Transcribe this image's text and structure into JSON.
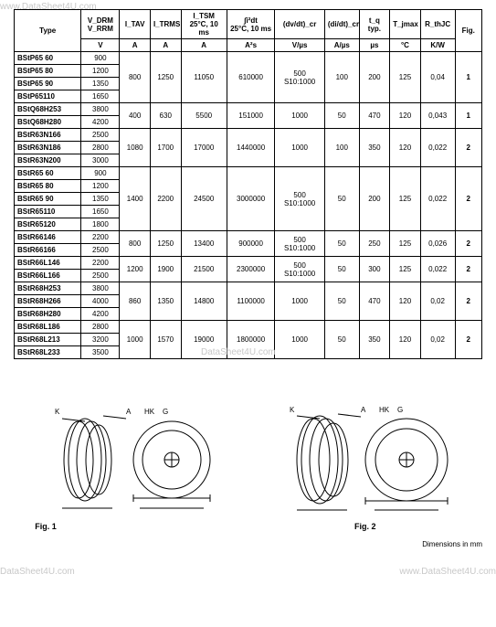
{
  "watermarks": {
    "top": "www.DataSheet4U.com",
    "mid": "DataSheet4U.com",
    "left": "DataSheet4U.com",
    "right": "www.DataSheet4U.com"
  },
  "table": {
    "headers": {
      "type": "Type",
      "vdrm": "V_DRM\nV_RRM",
      "vdrm_unit": "V",
      "itav": "I_TAV",
      "itav_unit": "A",
      "itrms": "I_TRMS",
      "itrms_unit": "A",
      "itsm": "I_TSM\n25°C, 10 ms",
      "itsm_unit": "A",
      "i2t": "∫i²dt\n25°C, 10 ms",
      "i2t_unit": "A²s",
      "dvdt": "(dv/dt)_cr",
      "dvdt_unit": "V/µs",
      "didt": "(di/dt)_cr",
      "didt_unit": "A/µs",
      "tq": "t_q typ.",
      "tq_unit": "µs",
      "tjmax": "T_jmax",
      "tjmax_unit": "°C",
      "rthjc": "R_thJC",
      "rthjc_unit": "K/W",
      "fig": "Fig."
    },
    "groups": [
      {
        "rows": [
          {
            "type": "BStP65 60",
            "v": "900"
          },
          {
            "type": "BStP65 80",
            "v": "1200"
          },
          {
            "type": "BStP65 90",
            "v": "1350"
          },
          {
            "type": "BStP65110",
            "v": "1650"
          }
        ],
        "itav": "800",
        "itrms": "1250",
        "itsm": "11050",
        "i2t": "610000",
        "dvdt": "500\nS10:1000",
        "didt": "100",
        "tq": "200",
        "tjmax": "125",
        "rth": "0,04",
        "fig": "1"
      },
      {
        "rows": [
          {
            "type": "BStQ68H253",
            "v": "3800"
          },
          {
            "type": "BStQ68H280",
            "v": "4200"
          }
        ],
        "itav": "400",
        "itrms": "630",
        "itsm": "5500",
        "i2t": "151000",
        "dvdt": "1000",
        "didt": "50",
        "tq": "470",
        "tjmax": "120",
        "rth": "0,043",
        "fig": "1"
      },
      {
        "rows": [
          {
            "type": "BStR63N166",
            "v": "2500"
          },
          {
            "type": "BStR63N186",
            "v": "2800"
          },
          {
            "type": "BStR63N200",
            "v": "3000"
          }
        ],
        "itav": "1080",
        "itrms": "1700",
        "itsm": "17000",
        "i2t": "1440000",
        "dvdt": "1000",
        "didt": "100",
        "tq": "350",
        "tjmax": "120",
        "rth": "0,022",
        "fig": "2"
      },
      {
        "rows": [
          {
            "type": "BStR65 60",
            "v": "900"
          },
          {
            "type": "BStR65 80",
            "v": "1200"
          },
          {
            "type": "BStR65 90",
            "v": "1350"
          },
          {
            "type": "BStR65110",
            "v": "1650"
          },
          {
            "type": "BStR65120",
            "v": "1800"
          }
        ],
        "itav": "1400",
        "itrms": "2200",
        "itsm": "24500",
        "i2t": "3000000",
        "dvdt": "500\nS10:1000",
        "didt": "50",
        "tq": "200",
        "tjmax": "125",
        "rth": "0,022",
        "fig": "2"
      },
      {
        "rows": [
          {
            "type": "BStR66146",
            "v": "2200"
          },
          {
            "type": "BStR66166",
            "v": "2500"
          }
        ],
        "itav": "800",
        "itrms": "1250",
        "itsm": "13400",
        "i2t": "900000",
        "dvdt": "500\nS10:1000",
        "didt": "50",
        "tq": "250",
        "tjmax": "125",
        "rth": "0,026",
        "fig": "2"
      },
      {
        "rows": [
          {
            "type": "BStR66L146",
            "v": "2200"
          },
          {
            "type": "BStR66L166",
            "v": "2500"
          }
        ],
        "itav": "1200",
        "itrms": "1900",
        "itsm": "21500",
        "i2t": "2300000",
        "dvdt": "500\nS10:1000",
        "didt": "50",
        "tq": "300",
        "tjmax": "125",
        "rth": "0,022",
        "fig": "2"
      },
      {
        "rows": [
          {
            "type": "BStR68H253",
            "v": "3800"
          },
          {
            "type": "BStR68H266",
            "v": "4000"
          },
          {
            "type": "BStR68H280",
            "v": "4200"
          }
        ],
        "itav": "860",
        "itrms": "1350",
        "itsm": "14800",
        "i2t": "1100000",
        "dvdt": "1000",
        "didt": "50",
        "tq": "470",
        "tjmax": "120",
        "rth": "0,02",
        "fig": "2"
      },
      {
        "rows": [
          {
            "type": "BStR68L186",
            "v": "2800"
          },
          {
            "type": "BStR68L213",
            "v": "3200"
          },
          {
            "type": "BStR68L233",
            "v": "3500"
          }
        ],
        "itav": "1000",
        "itrms": "1570",
        "itsm": "19000",
        "i2t": "1800000",
        "dvdt": "1000",
        "didt": "50",
        "tq": "350",
        "tjmax": "120",
        "rth": "0,02",
        "fig": "2"
      }
    ]
  },
  "figures": {
    "fig1_label": "Fig. 1",
    "fig2_label": "Fig. 2",
    "dimensions_note": "Dimensions in mm",
    "colors": {
      "stroke": "#000000",
      "fill": "#ffffff"
    },
    "labels": {
      "K": "K",
      "A": "A",
      "HK": "HK",
      "G": "G"
    }
  }
}
